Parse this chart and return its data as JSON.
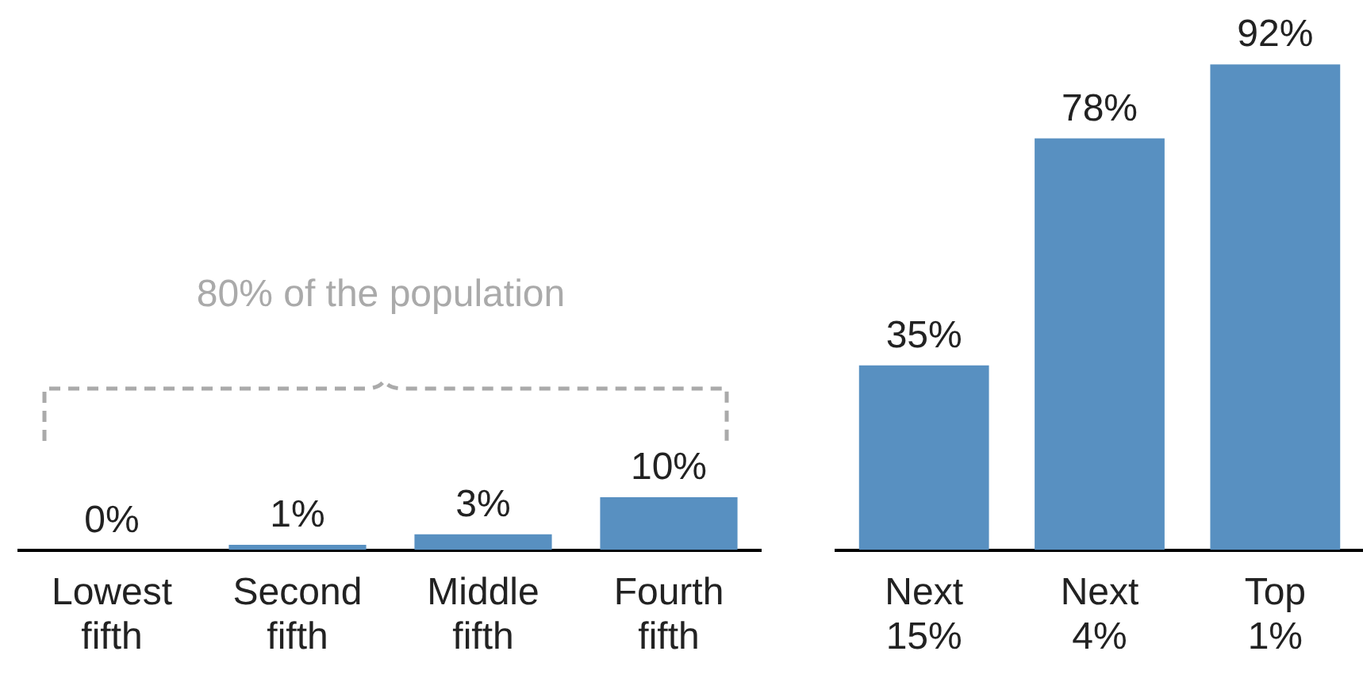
{
  "chart_data": [
    {
      "type": "bar",
      "categories": [
        "Lowest fifth",
        "Second fifth",
        "Middle fifth",
        "Fourth fifth"
      ],
      "values": [
        0,
        1,
        3,
        10
      ],
      "value_labels": [
        "0%",
        "1%",
        "3%",
        "10%"
      ],
      "color": "#5890c1",
      "tick_labels": "x",
      "grid": false,
      "legend": false,
      "annotations": [
        "80% of the population"
      ]
    },
    {
      "type": "bar",
      "categories": [
        "Next 15%",
        "Next 4%",
        "Top 1%"
      ],
      "values": [
        35,
        78,
        92
      ],
      "value_labels": [
        "35%",
        "78%",
        "92%"
      ],
      "color": "#5890c1",
      "tick_labels": "x",
      "grid": false,
      "legend": false
    }
  ]
}
